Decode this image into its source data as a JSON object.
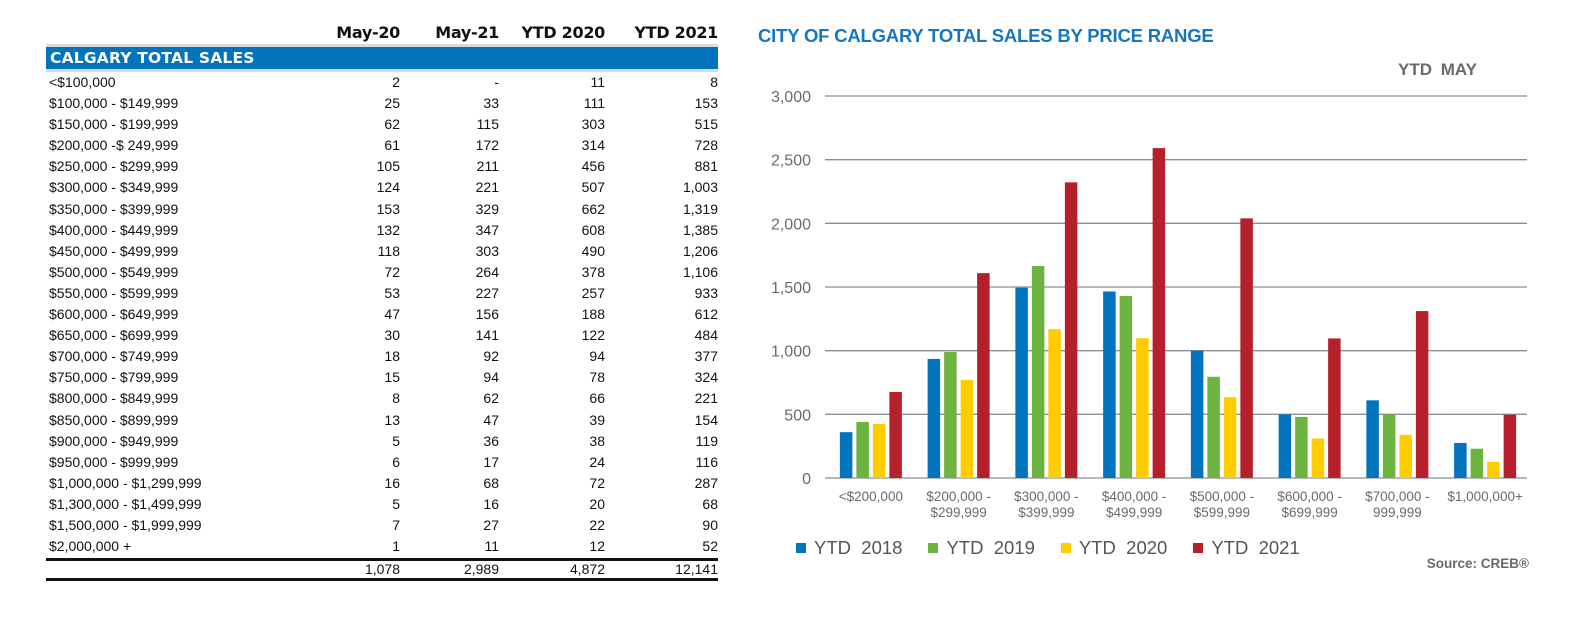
{
  "table": {
    "columns": [
      "",
      "May-20",
      "May-21",
      "YTD 2020",
      "YTD 2021"
    ],
    "section_title": "CALGARY TOTAL SALES",
    "rows": [
      [
        "<$100,000",
        "2",
        "-",
        "11",
        "8"
      ],
      [
        "$100,000 - $149,999",
        "25",
        "33",
        "111",
        "153"
      ],
      [
        "$150,000 - $199,999",
        "62",
        "115",
        "303",
        "515"
      ],
      [
        "$200,000 -$ 249,999",
        "61",
        "172",
        "314",
        "728"
      ],
      [
        "$250,000 - $299,999",
        "105",
        "211",
        "456",
        "881"
      ],
      [
        "$300,000 - $349,999",
        "124",
        "221",
        "507",
        "1,003"
      ],
      [
        "$350,000 - $399,999",
        "153",
        "329",
        "662",
        "1,319"
      ],
      [
        "$400,000 - $449,999",
        "132",
        "347",
        "608",
        "1,385"
      ],
      [
        "$450,000 - $499,999",
        "118",
        "303",
        "490",
        "1,206"
      ],
      [
        "$500,000 - $549,999",
        "72",
        "264",
        "378",
        "1,106"
      ],
      [
        "$550,000 - $599,999",
        "53",
        "227",
        "257",
        "933"
      ],
      [
        "$600,000 - $649,999",
        "47",
        "156",
        "188",
        "612"
      ],
      [
        "$650,000 - $699,999",
        "30",
        "141",
        "122",
        "484"
      ],
      [
        "$700,000 - $749,999",
        "18",
        "92",
        "94",
        "377"
      ],
      [
        "$750,000 - $799,999",
        "15",
        "94",
        "78",
        "324"
      ],
      [
        "$800,000 - $849,999",
        "8",
        "62",
        "66",
        "221"
      ],
      [
        "$850,000 - $899,999",
        "13",
        "47",
        "39",
        "154"
      ],
      [
        "$900,000 - $949,999",
        "5",
        "36",
        "38",
        "119"
      ],
      [
        "$950,000 - $999,999",
        "6",
        "17",
        "24",
        "116"
      ],
      [
        "$1,000,000 - $1,299,999",
        "16",
        "68",
        "72",
        "287"
      ],
      [
        "$1,300,000 - $1,499,999",
        "5",
        "16",
        "20",
        "68"
      ],
      [
        "$1,500,000 - $1,999,999",
        "7",
        "27",
        "22",
        "90"
      ],
      [
        "$2,000,000 +",
        "1",
        "11",
        "12",
        "52"
      ]
    ],
    "totals": [
      "",
      "1,078",
      "2,989",
      "4,872",
      "12,141"
    ]
  },
  "chart_data": {
    "type": "bar",
    "title": "CITY OF CALGARY TOTAL SALES BY PRICE RANGE",
    "subtitle": "YTD  MAY",
    "xlabel": "",
    "ylabel": "",
    "ylim": [
      0,
      3000
    ],
    "yticks": [
      0,
      500,
      1000,
      1500,
      2000,
      2500,
      3000
    ],
    "ytick_labels": [
      "0",
      "500",
      "1,000",
      "1,500",
      "2,000",
      "2,500",
      "3,000"
    ],
    "grid": true,
    "legend_position": "bottom-left",
    "categories": [
      [
        "<$200,000"
      ],
      [
        "$200,000 -",
        "$299,999"
      ],
      [
        "$300,000 -",
        "$399,999"
      ],
      [
        "$400,000 -",
        "$499,999"
      ],
      [
        "$500,000 -",
        "$599,999"
      ],
      [
        "$600,000 -",
        "$699,999"
      ],
      [
        "$700,000 -",
        "999,999"
      ],
      [
        "$1,000,000+"
      ]
    ],
    "series": [
      {
        "name": "YTD  2018",
        "color": "#0274bd",
        "values": [
          360,
          935,
          1495,
          1465,
          1000,
          500,
          610,
          275
        ]
      },
      {
        "name": "YTD  2019",
        "color": "#6db33f",
        "values": [
          440,
          990,
          1665,
          1430,
          795,
          480,
          500,
          230
        ]
      },
      {
        "name": "YTD  2020",
        "color": "#ffcc00",
        "values": [
          425,
          770,
          1169,
          1098,
          635,
          310,
          339,
          126
        ]
      },
      {
        "name": "YTD  2021",
        "color": "#b6202a",
        "values": [
          676,
          1609,
          2322,
          2591,
          2039,
          1096,
          1311,
          497
        ]
      }
    ],
    "source": "Source: CREB®"
  }
}
